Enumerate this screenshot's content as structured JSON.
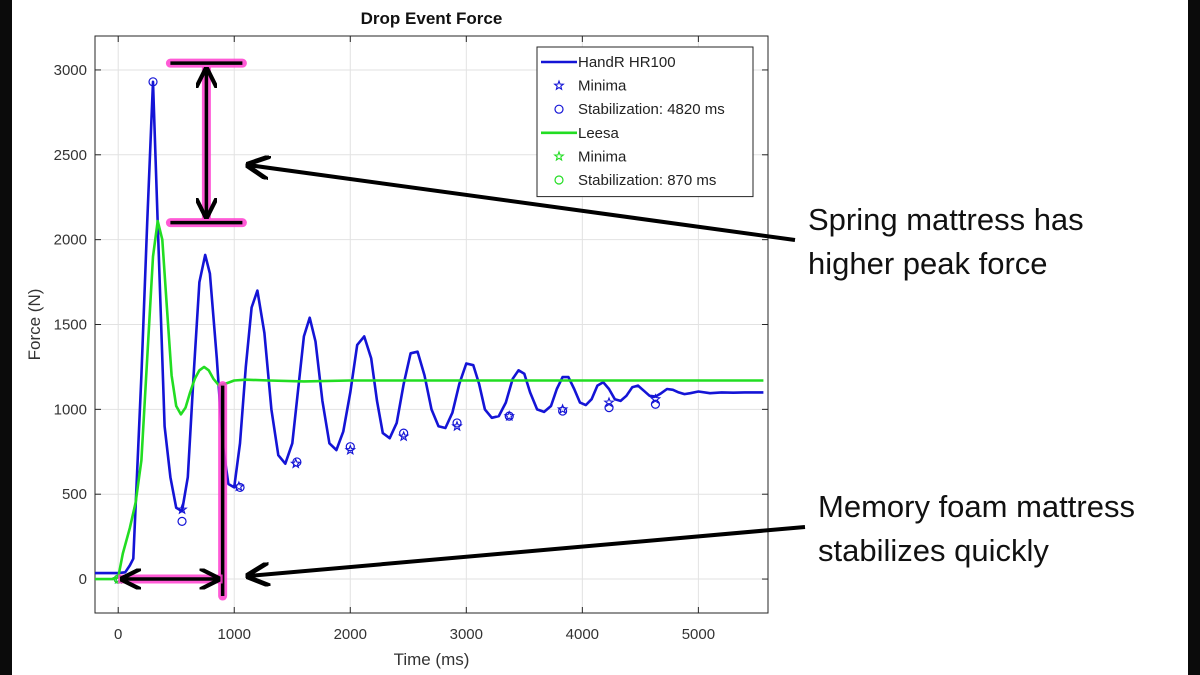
{
  "colors": {
    "series_blue": "#1414d6",
    "series_green": "#22dd22",
    "highlight_magenta": "#ff3fd0",
    "arrow_black": "#000000",
    "grid": "#e2e2e2",
    "axis": "#262626"
  },
  "annotations": {
    "spring": {
      "lines": [
        "Spring mattress has",
        "higher peak force"
      ]
    },
    "foam": {
      "lines": [
        "Memory foam mattress",
        "stabilizes quickly"
      ]
    }
  },
  "chart_data": {
    "type": "line",
    "title": "Drop Event Force",
    "xlabel": "Time (ms)",
    "ylabel": "Force (N)",
    "xlim": [
      -200,
      5600
    ],
    "ylim": [
      -200,
      3200
    ],
    "xticks": [
      0,
      1000,
      2000,
      3000,
      4000,
      5000
    ],
    "yticks": [
      0,
      500,
      1000,
      1500,
      2000,
      2500,
      3000
    ],
    "grid": true,
    "legend_position": "top-right",
    "legend": [
      {
        "label": "HandR HR100",
        "series": "hr_line",
        "style": "line",
        "color": "#1414d6"
      },
      {
        "label": "Minima",
        "series": "hr_star",
        "style": "star",
        "color": "#1414d6"
      },
      {
        "label": "Stabilization: 4820 ms",
        "series": "hr_circle",
        "style": "circle",
        "color": "#1414d6"
      },
      {
        "label": "Leesa",
        "series": "le_line",
        "style": "line",
        "color": "#22dd22"
      },
      {
        "label": "Minima",
        "series": "le_star",
        "style": "star",
        "color": "#22dd22"
      },
      {
        "label": "Stabilization: 870 ms",
        "series": "le_circle",
        "style": "circle",
        "color": "#22dd22"
      }
    ],
    "series": [
      {
        "id": "hr_line",
        "name": "HandR HR100",
        "kind": "line",
        "color": "#1414d6",
        "x": [
          -200,
          0,
          60,
          100,
          130,
          200,
          250,
          300,
          340,
          400,
          450,
          500,
          550,
          600,
          650,
          700,
          750,
          790,
          850,
          900,
          950,
          1000,
          1050,
          1100,
          1150,
          1200,
          1260,
          1320,
          1380,
          1440,
          1500,
          1540,
          1600,
          1650,
          1700,
          1760,
          1820,
          1880,
          1940,
          2000,
          2060,
          2120,
          2180,
          2230,
          2280,
          2340,
          2400,
          2460,
          2520,
          2580,
          2640,
          2700,
          2760,
          2820,
          2880,
          2940,
          3000,
          3060,
          3110,
          3160,
          3220,
          3280,
          3340,
          3400,
          3450,
          3500,
          3550,
          3610,
          3670,
          3730,
          3780,
          3830,
          3880,
          3930,
          3980,
          4030,
          4080,
          4130,
          4180,
          4230,
          4280,
          4330,
          4380,
          4430,
          4480,
          4530,
          4580,
          4630,
          4680,
          4730,
          4780,
          4830,
          4880,
          4930,
          5000,
          5100,
          5200,
          5300,
          5400,
          5500,
          5560
        ],
        "y": [
          35,
          35,
          40,
          80,
          120,
          1200,
          2100,
          2930,
          2100,
          900,
          600,
          420,
          400,
          600,
          1200,
          1750,
          1910,
          1800,
          1300,
          800,
          560,
          540,
          800,
          1250,
          1600,
          1700,
          1450,
          1000,
          730,
          680,
          800,
          1050,
          1430,
          1540,
          1400,
          1050,
          800,
          760,
          870,
          1100,
          1380,
          1430,
          1300,
          1050,
          860,
          830,
          920,
          1150,
          1330,
          1340,
          1200,
          1000,
          900,
          890,
          980,
          1150,
          1270,
          1260,
          1150,
          1000,
          950,
          960,
          1040,
          1180,
          1230,
          1210,
          1100,
          1000,
          985,
          1020,
          1120,
          1190,
          1190,
          1120,
          1040,
          1025,
          1060,
          1140,
          1160,
          1120,
          1060,
          1050,
          1080,
          1130,
          1140,
          1110,
          1080,
          1075,
          1095,
          1120,
          1115,
          1100,
          1090,
          1095,
          1105,
          1095,
          1100,
          1098,
          1100,
          1100,
          1100
        ]
      },
      {
        "id": "hr_star",
        "name": "Minima",
        "kind": "star",
        "color": "#1414d6",
        "x": [
          0,
          550,
          1040,
          1530,
          2000,
          2460,
          2920,
          3370,
          3830,
          4230,
          4630
        ],
        "y": [
          0,
          410,
          545,
          680,
          760,
          840,
          900,
          960,
          1000,
          1040,
          1060
        ]
      },
      {
        "id": "hr_circle",
        "name": "Stabilization: 4820 ms",
        "kind": "circle",
        "color": "#1414d6",
        "x": [
          0,
          300,
          550,
          1050,
          1540,
          2000,
          2460,
          2920,
          3370,
          3830,
          4230,
          4630
        ],
        "y": [
          0,
          2930,
          340,
          540,
          690,
          780,
          860,
          920,
          960,
          990,
          1010,
          1030
        ]
      },
      {
        "id": "le_line",
        "name": "Leesa",
        "kind": "line",
        "color": "#22dd22",
        "x": [
          -200,
          -50,
          0,
          40,
          100,
          150,
          200,
          250,
          300,
          340,
          380,
          420,
          460,
          500,
          540,
          580,
          620,
          660,
          700,
          740,
          780,
          820,
          870,
          920,
          1000,
          1100,
          1300,
          1600,
          2000,
          3000,
          4000,
          5000,
          5560
        ],
        "y": [
          0,
          0,
          10,
          150,
          300,
          450,
          700,
          1300,
          1900,
          2110,
          2000,
          1600,
          1200,
          1020,
          970,
          1010,
          1100,
          1180,
          1230,
          1250,
          1230,
          1180,
          1140,
          1150,
          1170,
          1175,
          1170,
          1165,
          1170,
          1170,
          1170,
          1170,
          1170
        ]
      },
      {
        "id": "le_star",
        "name": "Minima",
        "kind": "star",
        "color": "#22dd22",
        "x": [
          0
        ],
        "y": [
          0
        ]
      },
      {
        "id": "le_circle",
        "name": "Stabilization: 870 ms",
        "kind": "circle",
        "color": "#22dd22",
        "x": [
          0
        ],
        "y": [
          0
        ]
      }
    ],
    "highlight_markers": {
      "peak_bar": {
        "x": 760,
        "y_top": 3040,
        "y_bottom": 2100
      },
      "stab_bar": {
        "x": 900,
        "y_top": 1140,
        "y_bottom": -100
      },
      "stab_span": {
        "x_start": 0,
        "x_end": 900,
        "y": 0
      }
    }
  }
}
